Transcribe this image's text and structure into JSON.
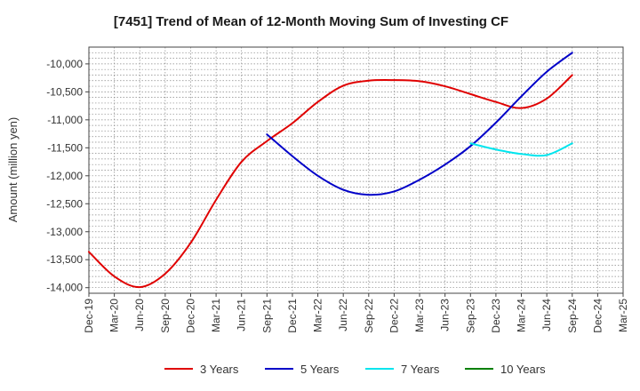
{
  "colors": {
    "3_years": "#e00000",
    "5_years": "#0000c8",
    "7_years": "#00e5ee",
    "10_years": "#008000"
  },
  "chart_data": {
    "type": "line",
    "title": "[7451]  Trend of Mean of 12-Month Moving Sum of Investing CF",
    "xlabel": "",
    "ylabel": "Amount (million yen)",
    "ylim": [
      -14100,
      -9700
    ],
    "yticks": [
      -10000,
      -10500,
      -11000,
      -11500,
      -12000,
      -12500,
      -13000,
      -13500,
      -14000
    ],
    "ytick_labels": [
      "-10,000",
      "-10,500",
      "-11,000",
      "-11,500",
      "-12,000",
      "-12,500",
      "-13,000",
      "-13,500",
      "-14,000"
    ],
    "categories": [
      "Dec-19",
      "Mar-20",
      "Jun-20",
      "Sep-20",
      "Dec-20",
      "Mar-21",
      "Jun-21",
      "Sep-21",
      "Dec-21",
      "Mar-22",
      "Jun-22",
      "Sep-22",
      "Dec-22",
      "Mar-23",
      "Jun-23",
      "Sep-23",
      "Dec-23",
      "Mar-24",
      "Jun-24",
      "Sep-24",
      "Dec-24",
      "Mar-25"
    ],
    "grid": true,
    "legend": "bottom",
    "series": [
      {
        "name": "3 Years",
        "color_key": "3_years",
        "values": [
          -13360,
          -13800,
          -13990,
          -13750,
          -13200,
          -12430,
          -11750,
          -11380,
          -11060,
          -10680,
          -10390,
          -10300,
          -10290,
          -10310,
          -10400,
          -10540,
          -10680,
          -10790,
          -10620,
          -10200,
          null,
          null
        ]
      },
      {
        "name": "5 Years",
        "color_key": "5_years",
        "values": [
          null,
          null,
          null,
          null,
          null,
          null,
          null,
          -11260,
          -11650,
          -12000,
          -12250,
          -12340,
          -12280,
          -12070,
          -11800,
          -11470,
          -11050,
          -10580,
          -10140,
          -9800,
          null,
          null
        ]
      },
      {
        "name": "7 Years",
        "color_key": "7_years",
        "values": [
          null,
          null,
          null,
          null,
          null,
          null,
          null,
          null,
          null,
          null,
          null,
          null,
          null,
          null,
          null,
          -11420,
          -11530,
          -11610,
          -11630,
          -11420,
          null,
          null
        ]
      },
      {
        "name": "10 Years",
        "color_key": "10_years",
        "values": [
          null,
          null,
          null,
          null,
          null,
          null,
          null,
          null,
          null,
          null,
          null,
          null,
          null,
          null,
          null,
          null,
          null,
          null,
          null,
          null,
          null,
          null
        ]
      }
    ]
  }
}
